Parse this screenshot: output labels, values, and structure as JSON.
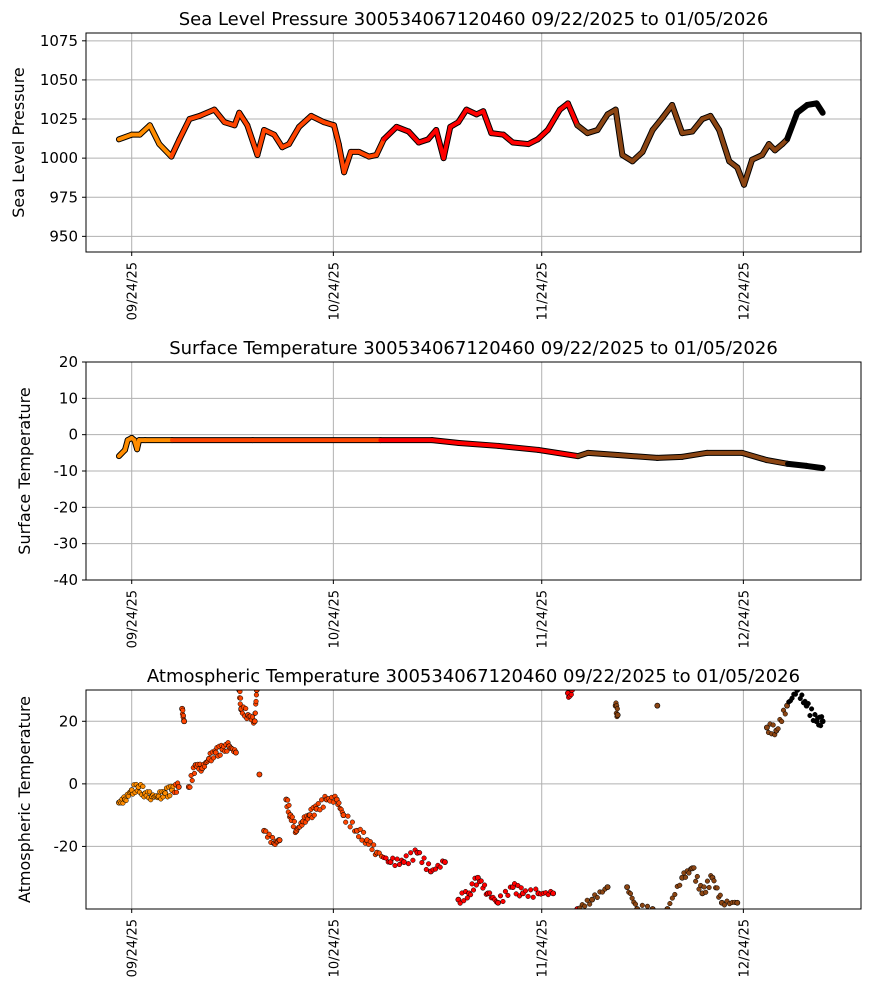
{
  "chart_data": [
    {
      "type": "line",
      "title": "Sea Level Pressure 300534067120460  09/22/2025 to 01/05/2026",
      "xlabel": "",
      "ylabel": "Sea Level Pressure",
      "x_units": "days since 09/22/2025",
      "xlim": [
        -4.8,
        110.5
      ],
      "ylim": [
        940,
        1080
      ],
      "yticks": [
        950,
        975,
        1000,
        1025,
        1050,
        1075
      ],
      "grid": true,
      "x": [
        0.1,
        2,
        3.2,
        4.7,
        6.1,
        7.9,
        9.1,
        10.6,
        12.1,
        14.3,
        15.8,
        17.3,
        18,
        19.2,
        20.7,
        21.7,
        23.2,
        24.4,
        25.4,
        26.9,
        28.7,
        30.6,
        32.1,
        32.8,
        33.6,
        34.6,
        35.8,
        37.3,
        38.4,
        39.5,
        41.4,
        43.2,
        44.7,
        46.1,
        47.3,
        48.4,
        49.4,
        50.6,
        51.8,
        53.3,
        54.3,
        55.5,
        57.3,
        58.7,
        61,
        62.4,
        63.9,
        65.7,
        66.9,
        68.3,
        69.8,
        71.3,
        72.8,
        74,
        75,
        76.5,
        78,
        79.5,
        81,
        82.4,
        83.9,
        85.4,
        86.9,
        88.1,
        89.4,
        90.9,
        92.1,
        93.1,
        94.3,
        95.8,
        96.8,
        97.7,
        98.8,
        99.5,
        101,
        102.5,
        103.9,
        104.8
      ],
      "y": [
        1012,
        1015,
        1015,
        1021,
        1009,
        1001,
        1012,
        1025,
        1027,
        1031,
        1023,
        1021,
        1029,
        1021,
        1002,
        1018,
        1015,
        1007,
        1009,
        1020,
        1027,
        1023,
        1021,
        1009,
        991,
        1004,
        1004,
        1001,
        1002,
        1012,
        1020,
        1017,
        1010,
        1012,
        1018,
        1000,
        1020,
        1023,
        1031,
        1028,
        1030,
        1016,
        1015,
        1010,
        1009,
        1012,
        1018,
        1031,
        1035,
        1021,
        1016,
        1018,
        1028,
        1031,
        1002,
        998,
        1004,
        1018,
        1026,
        1034,
        1016,
        1017,
        1025,
        1027,
        1018,
        998,
        994,
        983,
        999,
        1002,
        1009,
        1005,
        1009,
        1012,
        1029,
        1034,
        1035,
        1029
      ]
    },
    {
      "type": "line",
      "title": "Surface Temperature 300534067120460  09/22/2025 to 01/05/2026",
      "xlabel": "",
      "ylabel": "Surface Temperature",
      "x_units": "days since 09/22/2025",
      "xlim": [
        -4.8,
        110.5
      ],
      "ylim": [
        -40,
        20
      ],
      "yticks": [
        -40,
        -30,
        -20,
        -10,
        0,
        10,
        20
      ],
      "grid": true,
      "x": [
        0.1,
        1,
        1.4,
        2,
        2.4,
        2.8,
        3.1,
        4,
        8,
        20,
        39,
        46.7,
        50.7,
        56.6,
        62.5,
        68.4,
        69.9,
        74.3,
        80.2,
        83.9,
        87.6,
        92.8,
        96.5,
        99.5,
        102.4,
        104.8
      ],
      "y": [
        -5.9,
        -4.2,
        -1.5,
        -0.9,
        -1.5,
        -4,
        -1.5,
        -1.5,
        -1.5,
        -1.5,
        -1.5,
        -1.5,
        -2.3,
        -3.1,
        -4.2,
        -5.9,
        -5,
        -5.6,
        -6.4,
        -6.1,
        -5,
        -5,
        -7,
        -8,
        -8.6,
        -9.2
      ]
    },
    {
      "type": "scatter",
      "title": "Atmospheric Temperature 300534067120460  09/22/2025 to 01/05/2026",
      "xlabel": "",
      "ylabel": "Atmospheric Temperature",
      "x_units": "days since 09/22/2025",
      "xlim": [
        -4.8,
        110.5
      ],
      "ylim": [
        -40,
        30
      ],
      "yticks": [
        -20,
        0,
        20
      ],
      "grid": true,
      "x": [
        0.1,
        1,
        2,
        3,
        4,
        5,
        6,
        7,
        8,
        9,
        9.5,
        9.8,
        10.5,
        11.5,
        12.5,
        13.5,
        14.5,
        15.5,
        16.5,
        17.5,
        18,
        18.3,
        19.3,
        20.3,
        20.6,
        21,
        21.7,
        23.2,
        24,
        25,
        25.6,
        26.5,
        27.5,
        28.5,
        29.5,
        31,
        32.5,
        33.5,
        35.5,
        37,
        38.5,
        40.5,
        42.5,
        44.5,
        46.5,
        48.6,
        50.6,
        52.2,
        53.5,
        55,
        56.5,
        58.7,
        60.2,
        62.5,
        64.7,
        66.9,
        67.5,
        68.3,
        70.5,
        72.8,
        74,
        74.3,
        75.7,
        77.2,
        79.5,
        80.2,
        81.7,
        83.9,
        85.4,
        86.9,
        88.4,
        89.8,
        92.1,
        96.5,
        97.9,
        99.5,
        101,
        102.4,
        103.9,
        104.8
      ],
      "y": [
        -6,
        -5,
        -2,
        -1,
        -3,
        -4,
        -4,
        -3,
        -2,
        -1,
        24,
        20,
        -1,
        6,
        5,
        8,
        10,
        11,
        12,
        10,
        30,
        24,
        22,
        20,
        30,
        3,
        -15,
        -19,
        -18,
        -5,
        -10,
        -15,
        -12,
        -10,
        -8,
        -5,
        -5,
        -10,
        -15,
        -18,
        -22,
        -25,
        -25,
        -22,
        -28,
        -25,
        -37,
        -35,
        -30,
        -35,
        -38,
        -33,
        -35,
        -35,
        -35,
        29,
        30,
        -40,
        -37,
        -33,
        25,
        22,
        -33,
        -40,
        -40,
        25,
        -40,
        -30,
        -27,
        -35,
        -30,
        -38,
        -38,
        18,
        17,
        25,
        30,
        25,
        20,
        20
      ]
    }
  ],
  "x_axis": {
    "tick_days": [
      2,
      32,
      63,
      93
    ],
    "tick_labels": [
      "09/24/25",
      "10/24/25",
      "11/24/25",
      "12/24/25"
    ]
  },
  "color_segments": {
    "breaks": [
      8.2,
      39.2,
      68.4,
      99.6
    ],
    "colors": [
      "#ff8c00",
      "#ff4500",
      "#ff0000",
      "#8b4513",
      "#000000"
    ]
  }
}
